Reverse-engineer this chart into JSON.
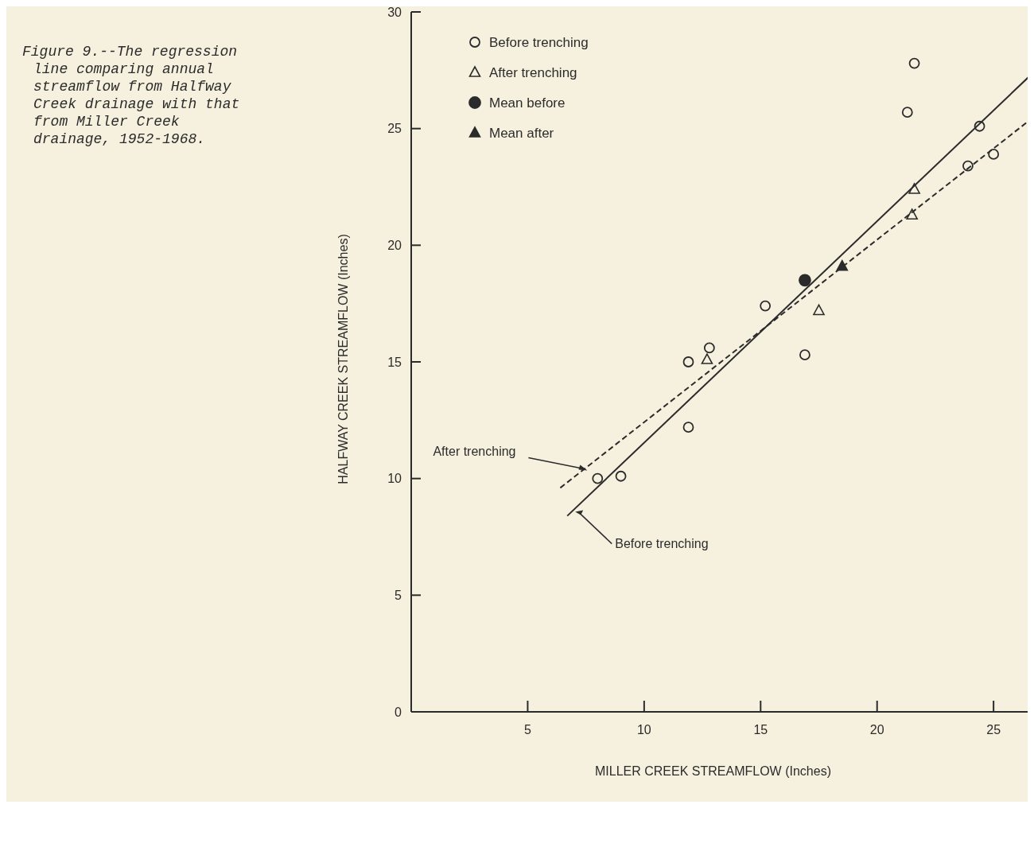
{
  "chart_data": {
    "type": "scatter",
    "xlabel": "MILLER CREEK STREAMFLOW (Inches)",
    "ylabel": "HALFWAY CREEK STREAMFLOW (Inches)",
    "annotations": [
      "Figure 9.--The regression line comparing annual streamflow from Halfway Creek drainage with that from Miller Creek drainage, 1952-1968."
    ],
    "xlim": [
      0,
      26.6
    ],
    "xticks": [
      5,
      10,
      15,
      20,
      25
    ],
    "ylim": [
      0,
      30
    ],
    "yticks": [
      0,
      5,
      10,
      15,
      20,
      25,
      30
    ],
    "grid": false,
    "legend": "top left",
    "series": [
      {
        "name": "Before trenching",
        "marker": "circle",
        "color": "#2b2b2b",
        "x": [
          8.0,
          9.0,
          11.9,
          11.9,
          12.8,
          15.2,
          16.9,
          21.3,
          21.6,
          24.4,
          23.9,
          25.0
        ],
        "values": [
          10.0,
          10.1,
          15.0,
          12.2,
          15.6,
          17.4,
          15.3,
          25.7,
          27.8,
          25.1,
          23.4,
          23.9
        ]
      },
      {
        "name": "After trenching",
        "marker": "triangle",
        "color": "#2b2b2b",
        "x": [
          12.7,
          17.5,
          21.6,
          21.5
        ],
        "values": [
          15.1,
          17.2,
          22.4,
          21.3
        ]
      },
      {
        "name": "Mean before",
        "marker": "circle",
        "color": "#2b2b2b",
        "x": [
          16.9
        ],
        "values": [
          18.5
        ]
      },
      {
        "name": "Mean after",
        "marker": "triangle",
        "color": "#2b2b2b",
        "x": [
          18.5
        ],
        "values": [
          19.1
        ]
      },
      {
        "name": "After trenching",
        "type": "line",
        "line_style": "dashed",
        "color": "#2b2b2b",
        "x": [
          6.4,
          26.6
        ],
        "values": [
          9.6,
          25.4
        ]
      },
      {
        "name": "Before trenching",
        "type": "line",
        "line_style": "solid",
        "color": "#2b2b2b",
        "x": [
          6.7,
          26.6
        ],
        "values": [
          8.4,
          27.3
        ]
      }
    ]
  }
}
